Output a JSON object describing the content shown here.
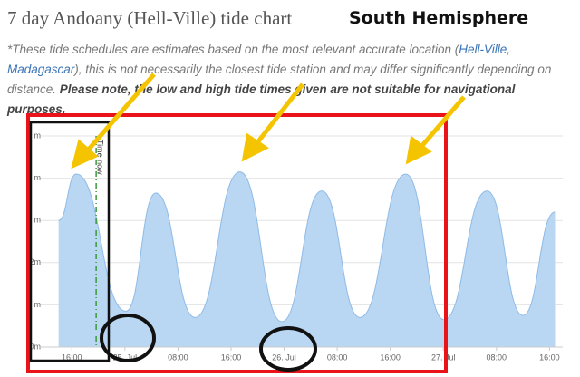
{
  "header": {
    "title": "7 day Andoany (Hell-Ville) tide chart",
    "annotation": "South Hemisphere"
  },
  "disclaimer": {
    "intro": "*These tide schedules are estimates based on the most relevant accurate location (",
    "link": "Hell-Ville, Madagascar",
    "middle": "), this is not necessarily the closest tide station and may differ significantly depending on distance. ",
    "warning": "Please note, the low and high tide times given are not suitable for navigational purposes."
  },
  "chart_data": {
    "type": "area",
    "x": [
      "24. Jul 14:00",
      "24. Jul 16:40",
      "25. Jul 00:10",
      "25. Jul 04:40",
      "25. Jul 10:35",
      "25. Jul 17:20",
      "25. Jul 23:40",
      "26. Jul 05:40",
      "26. Jul 11:25",
      "26. Jul 18:20",
      "27. Jul 00:05",
      "27. Jul 06:35",
      "27. Jul 12:00",
      "27. Jul 16:50"
    ],
    "values": [
      3.0,
      4.1,
      0.85,
      3.65,
      0.7,
      4.15,
      0.6,
      3.7,
      0.7,
      4.1,
      0.65,
      3.7,
      0.75,
      3.2
    ],
    "color": "#b9d6f2",
    "line_color": "#8fbbe6",
    "xlim": [
      "24. Jul 12:00",
      "27. Jul 18:00"
    ],
    "xticks": [
      {
        "value": "24. Jul 16:00",
        "label": "16:00"
      },
      {
        "value": "25. Jul 00:00",
        "label": "25. Jul"
      },
      {
        "value": "25. Jul 08:00",
        "label": "08:00"
      },
      {
        "value": "25. Jul 16:00",
        "label": "16:00"
      },
      {
        "value": "26. Jul 00:00",
        "label": "26. Jul"
      },
      {
        "value": "26. Jul 08:00",
        "label": "08:00"
      },
      {
        "value": "26. Jul 16:00",
        "label": "16:00"
      },
      {
        "value": "27. Jul 00:00",
        "label": "27. Jul"
      },
      {
        "value": "27. Jul 08:00",
        "label": "08:00"
      },
      {
        "value": "27. Jul 16:00",
        "label": "16:00"
      }
    ],
    "ylim": [
      0,
      5
    ],
    "yticks": [
      {
        "value": 0,
        "label": "0m"
      },
      {
        "value": 1,
        "label": "m"
      },
      {
        "value": 2,
        "label": "2m"
      },
      {
        "value": 3,
        "label": "m"
      },
      {
        "value": 4,
        "label": "m"
      },
      {
        "value": 5,
        "label": "m"
      }
    ],
    "grid": true,
    "now_line": {
      "label": "Time now",
      "x": "24. Jul 19:40",
      "color": "#3a9a3a"
    }
  }
}
